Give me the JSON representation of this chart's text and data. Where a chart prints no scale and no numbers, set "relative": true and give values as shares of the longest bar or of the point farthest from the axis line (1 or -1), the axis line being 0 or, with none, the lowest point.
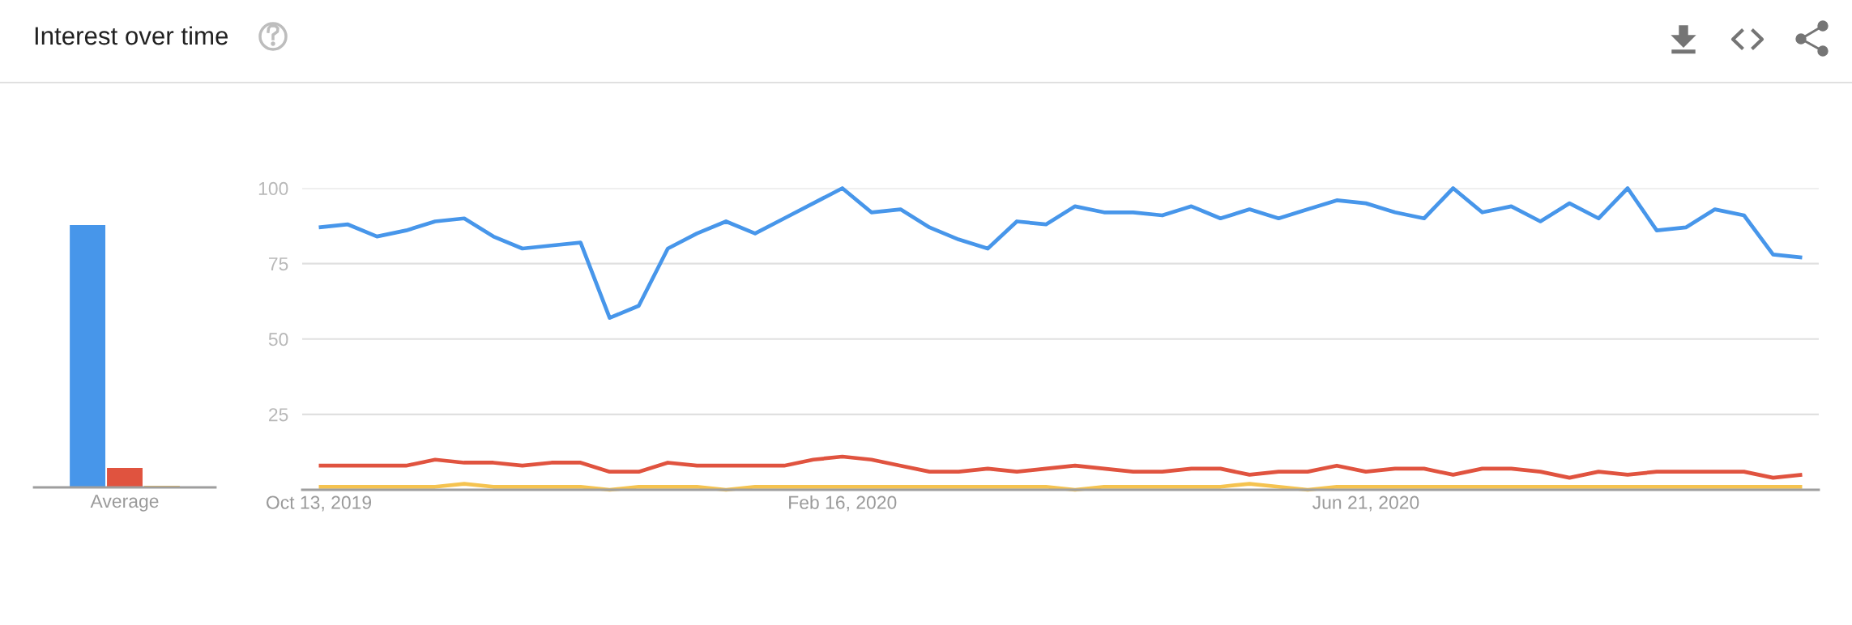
{
  "chart_data": [
    {
      "type": "bar",
      "title": "Interest over time",
      "categories": [
        "Average"
      ],
      "relative": true,
      "series": [
        {
          "color": "#4796ea",
          "values": [
            1
          ]
        },
        {
          "color": "#e0533f",
          "values": [
            0.074
          ]
        },
        {
          "color": "#f5c350",
          "values": [
            0.006
          ]
        }
      ]
    },
    {
      "type": "line",
      "x": [
        "2019-10-13",
        "2019-10-20",
        "2019-10-27",
        "2019-11-03",
        "2019-11-10",
        "2019-11-17",
        "2019-11-24",
        "2019-12-01",
        "2019-12-08",
        "2019-12-15",
        "2019-12-22",
        "2019-12-29",
        "2020-01-05",
        "2020-01-12",
        "2020-01-19",
        "2020-01-26",
        "2020-02-02",
        "2020-02-09",
        "2020-02-16",
        "2020-02-23",
        "2020-03-01",
        "2020-03-08",
        "2020-03-15",
        "2020-03-22",
        "2020-03-29",
        "2020-04-05",
        "2020-04-12",
        "2020-04-19",
        "2020-04-26",
        "2020-05-03",
        "2020-05-10",
        "2020-05-17",
        "2020-05-24",
        "2020-05-31",
        "2020-06-07",
        "2020-06-14",
        "2020-06-21",
        "2020-06-28",
        "2020-07-05",
        "2020-07-12",
        "2020-07-19",
        "2020-07-26",
        "2020-08-02",
        "2020-08-09",
        "2020-08-16",
        "2020-08-23",
        "2020-08-30",
        "2020-09-06",
        "2020-09-13",
        "2020-09-20",
        "2020-09-27",
        "2020-10-04"
      ],
      "series": [
        {
          "color": "#4796ea",
          "values": [
            87,
            88,
            84,
            86,
            89,
            90,
            84,
            80,
            81,
            82,
            57,
            61,
            80,
            85,
            89,
            85,
            90,
            95,
            100,
            92,
            93,
            87,
            83,
            80,
            89,
            88,
            94,
            92,
            92,
            91,
            94,
            90,
            93,
            90,
            93,
            96,
            95,
            92,
            90,
            100,
            92,
            94,
            89,
            95,
            90,
            100,
            86,
            87,
            93,
            91,
            78,
            77
          ]
        },
        {
          "color": "#e0533f",
          "values": [
            8,
            8,
            8,
            8,
            10,
            9,
            9,
            8,
            9,
            9,
            6,
            6,
            9,
            8,
            8,
            8,
            8,
            10,
            11,
            10,
            8,
            6,
            6,
            7,
            6,
            7,
            8,
            7,
            6,
            6,
            7,
            7,
            5,
            6,
            6,
            8,
            6,
            7,
            7,
            5,
            7,
            7,
            6,
            4,
            6,
            5,
            6,
            6,
            6,
            6,
            4,
            5
          ]
        },
        {
          "color": "#f5c350",
          "values": [
            1,
            1,
            1,
            1,
            1,
            2,
            1,
            1,
            1,
            1,
            0,
            1,
            1,
            1,
            0,
            1,
            1,
            1,
            1,
            1,
            1,
            1,
            1,
            1,
            1,
            1,
            0,
            1,
            1,
            1,
            1,
            1,
            2,
            1,
            0,
            1,
            1,
            1,
            1,
            1,
            1,
            1,
            1,
            1,
            1,
            1,
            1,
            1,
            1,
            1,
            1,
            1
          ]
        }
      ],
      "xlim": [
        "2019-10-09",
        "2020-10-08"
      ],
      "xticks": [
        {
          "value": "2019-10-13",
          "label": "Oct 13, 2019"
        },
        {
          "value": "2020-02-16",
          "label": "Feb 16, 2020"
        },
        {
          "value": "2020-06-21",
          "label": "Jun 21, 2020"
        }
      ],
      "ylim": [
        0,
        100
      ],
      "yticks": [
        25,
        50,
        75,
        100
      ],
      "grid": "y",
      "marker": "none",
      "line_style": "solid"
    }
  ]
}
